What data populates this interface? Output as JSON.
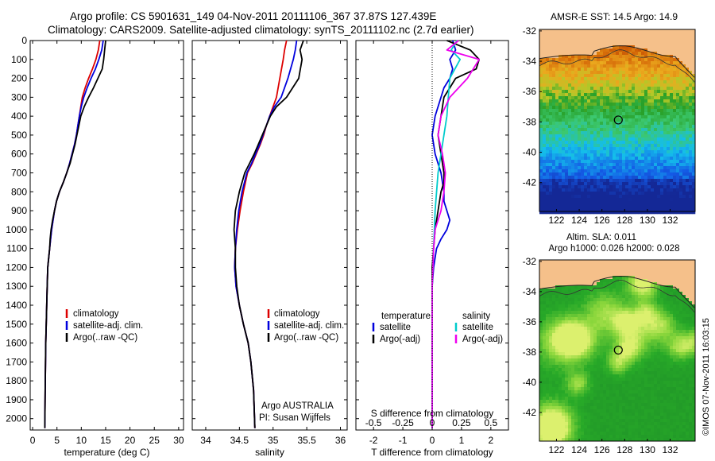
{
  "header": {
    "line1": "Argo profile: CS 5901631_149 04-Nov-2011 20111106_367 37.87S 127.439E",
    "line2": "Climatology: CARS2009. Satellite-adjusted climatology: synTS_20111102.nc (2.7d earlier)"
  },
  "footer_credit": "©IMOS 07-Nov-2011 16:03:15",
  "colors": {
    "climatology": "#dd0000",
    "satellite": "#0000dd",
    "argo": "#000000",
    "sal_satellite": "#00cccc",
    "sal_argo": "#ee00ee",
    "land": "#f5c08a"
  },
  "chart_data": [
    {
      "id": "temperature",
      "type": "line",
      "xlabel": "temperature (deg C)",
      "ylabel": "",
      "xlim": [
        -0.5,
        31
      ],
      "ylim": [
        0,
        2060
      ],
      "y_inverted": true,
      "xticks": [
        0,
        5,
        10,
        15,
        20,
        25,
        30
      ],
      "yticks": [
        0,
        100,
        200,
        300,
        400,
        500,
        600,
        700,
        800,
        900,
        1000,
        1100,
        1200,
        1300,
        1400,
        1500,
        1600,
        1700,
        1800,
        1900,
        2000
      ],
      "legend": [
        "climatology",
        "satellite-adj. clim.",
        "Argo(..raw -QC)"
      ],
      "legend_position": "lower-middle",
      "series": [
        {
          "name": "climatology",
          "color": "#dd0000",
          "x": [
            13.8,
            13.5,
            13.0,
            12.3,
            11.5,
            10.8,
            10.2,
            9.9,
            9.6,
            9.3,
            9.0,
            8.6,
            8.1,
            7.6,
            7.0,
            6.3,
            5.5,
            4.9,
            4.5,
            4.2,
            3.9,
            3.7,
            3.5,
            3.3,
            3.1,
            3.0,
            2.9,
            2.8,
            2.7,
            2.6,
            2.5
          ],
          "y": [
            0,
            50,
            100,
            150,
            200,
            250,
            300,
            350,
            400,
            450,
            500,
            550,
            600,
            650,
            700,
            750,
            800,
            850,
            900,
            950,
            1000,
            1050,
            1100,
            1150,
            1200,
            1300,
            1400,
            1500,
            1600,
            1800,
            2050
          ]
        },
        {
          "name": "satellite-adj. clim.",
          "color": "#0000dd",
          "x": [
            14.5,
            14.2,
            13.6,
            12.9,
            12.0,
            11.2,
            10.5,
            10.0,
            9.6,
            9.3,
            9.0,
            8.6,
            8.1,
            7.6,
            7.0,
            6.3,
            5.5,
            4.9,
            4.5,
            4.2,
            3.9,
            3.7,
            3.5,
            3.3,
            3.1,
            3.0,
            2.9,
            2.8,
            2.7,
            2.6,
            2.5
          ],
          "y": [
            0,
            50,
            100,
            150,
            200,
            250,
            300,
            350,
            400,
            450,
            500,
            550,
            600,
            650,
            700,
            750,
            800,
            850,
            900,
            950,
            1000,
            1050,
            1100,
            1150,
            1200,
            1300,
            1400,
            1500,
            1600,
            1800,
            2050
          ]
        },
        {
          "name": "Argo(..raw -QC)",
          "color": "#000000",
          "x": [
            15.0,
            14.8,
            14.6,
            14.3,
            13.4,
            12.5,
            11.5,
            10.6,
            9.9,
            9.5,
            9.1,
            8.7,
            8.2,
            7.7,
            7.0,
            6.3,
            5.5,
            4.9,
            4.5,
            4.1,
            3.8,
            3.6,
            3.5,
            3.3,
            3.1,
            3.0,
            2.9,
            2.8,
            2.7,
            2.6,
            2.5
          ],
          "y": [
            0,
            50,
            100,
            150,
            200,
            250,
            300,
            350,
            400,
            450,
            500,
            550,
            600,
            650,
            700,
            750,
            800,
            850,
            900,
            950,
            1000,
            1050,
            1100,
            1150,
            1200,
            1300,
            1400,
            1500,
            1600,
            1800,
            2050
          ]
        }
      ]
    },
    {
      "id": "salinity",
      "type": "line",
      "xlabel": "salinity",
      "ylabel": "",
      "xlim": [
        33.8,
        36.1
      ],
      "ylim": [
        0,
        2060
      ],
      "y_inverted": true,
      "xticks": [
        34,
        34.5,
        35,
        35.5,
        36
      ],
      "legend": [
        "climatology",
        "satellite-adj. clim.",
        "Argo(..raw -QC)"
      ],
      "legend_position": "lower-middle",
      "annotation_lines": [
        "Argo AUSTRALIA",
        "PI: Susan Wijffels"
      ],
      "series": [
        {
          "name": "climatology",
          "color": "#dd0000",
          "x": [
            35.2,
            35.17,
            35.15,
            35.1,
            35.05,
            35.0,
            34.95,
            34.9,
            34.86,
            34.81,
            34.75,
            34.69,
            34.62,
            34.56,
            34.51,
            34.47,
            34.44,
            34.43,
            34.45,
            34.5,
            34.56,
            34.63,
            34.67,
            34.71,
            34.73
          ],
          "y": [
            0,
            50,
            100,
            200,
            300,
            350,
            400,
            450,
            500,
            550,
            600,
            650,
            700,
            800,
            900,
            1000,
            1100,
            1200,
            1300,
            1400,
            1500,
            1600,
            1700,
            1850,
            2050
          ]
        },
        {
          "name": "satellite-adj. clim.",
          "color": "#0000dd",
          "x": [
            35.35,
            35.33,
            35.3,
            35.22,
            35.12,
            35.02,
            34.95,
            34.9,
            34.85,
            34.8,
            34.74,
            34.68,
            34.61,
            34.54,
            34.49,
            34.46,
            34.44,
            34.43,
            34.45,
            34.5,
            34.56,
            34.63,
            34.67,
            34.71,
            34.73
          ],
          "y": [
            0,
            50,
            100,
            200,
            300,
            350,
            400,
            450,
            500,
            550,
            600,
            650,
            700,
            800,
            900,
            1000,
            1100,
            1200,
            1300,
            1400,
            1500,
            1600,
            1700,
            1850,
            2050
          ]
        },
        {
          "name": "Argo(..raw -QC)",
          "color": "#000000",
          "x": [
            35.45,
            35.4,
            35.43,
            35.38,
            35.2,
            35.05,
            34.96,
            34.9,
            34.84,
            34.78,
            34.72,
            34.65,
            34.58,
            34.5,
            34.44,
            34.42,
            34.44,
            34.44,
            34.46,
            34.5,
            34.56,
            34.63,
            34.67,
            34.71,
            34.73
          ],
          "y": [
            0,
            50,
            100,
            200,
            300,
            350,
            400,
            450,
            500,
            550,
            600,
            650,
            700,
            800,
            900,
            1000,
            1100,
            1200,
            1300,
            1400,
            1500,
            1600,
            1700,
            1850,
            2050
          ]
        }
      ]
    },
    {
      "id": "difference",
      "type": "line",
      "xlabel": "T difference from climatology",
      "top_label": "S difference from climatology",
      "xlim": [
        -2.6,
        2.6
      ],
      "ylim": [
        0,
        2060
      ],
      "y_inverted": true,
      "xticks_T": [
        -2,
        -1,
        0,
        1,
        2
      ],
      "xticks_S": [
        "-0.5",
        "-0.25",
        "0",
        "0.25",
        "0.5"
      ],
      "legend_temperature_title": "temperature",
      "legend_salinity_title": "salinity",
      "legend": [
        "satellite",
        "Argo(-adj)",
        "satellite",
        "Argo(-adj)"
      ],
      "legend_position": "lower-middle",
      "series": [
        {
          "name": "satellite",
          "group": "temperature",
          "color": "#0000dd",
          "x": [
            0.7,
            0.8,
            0.6,
            0.7,
            0.6,
            0.4,
            0.3,
            0.1,
            0.0,
            0.1,
            0.2,
            0.3,
            0.4,
            0.4,
            0.5,
            0.6,
            0.5,
            0.3,
            0.15,
            0.05,
            0.0,
            0.0,
            0.0,
            0.0
          ],
          "y": [
            0,
            50,
            100,
            150,
            200,
            250,
            300,
            400,
            500,
            600,
            650,
            700,
            800,
            850,
            900,
            950,
            1000,
            1050,
            1100,
            1200,
            1300,
            1500,
            1800,
            2050
          ]
        },
        {
          "name": "Argo(-adj)",
          "group": "temperature",
          "color": "#000000",
          "x": [
            0.5,
            1.3,
            1.6,
            1.5,
            0.8,
            0.6,
            0.4,
            0.3,
            0.2,
            0.3,
            0.4,
            0.4,
            0.3,
            0.2,
            0.1,
            0.05,
            0.0,
            0.0,
            0.0,
            0.0
          ],
          "y": [
            0,
            50,
            100,
            150,
            200,
            250,
            300,
            400,
            500,
            600,
            700,
            750,
            800,
            900,
            1000,
            1100,
            1200,
            1400,
            1700,
            2050
          ]
        },
        {
          "name": "satellite",
          "group": "salinity",
          "color": "#00cccc",
          "x": [
            0.85,
            0.65,
            0.95,
            0.6,
            0.55,
            0.5,
            0.4,
            0.2,
            0.1,
            0.05,
            0.0,
            0.0,
            0.0
          ],
          "y": [
            0,
            50,
            100,
            200,
            300,
            400,
            500,
            700,
            900,
            1100,
            1300,
            1600,
            2050
          ]
        },
        {
          "name": "Argo(-adj)",
          "group": "salinity",
          "color": "#ee00ee",
          "x": [
            0.9,
            0.5,
            1.6,
            1.2,
            0.6,
            0.3,
            0.2,
            0.35,
            0.45,
            0.4,
            0.3,
            0.2,
            0.1,
            0.05,
            0.0,
            0.0
          ],
          "y": [
            0,
            50,
            100,
            200,
            300,
            400,
            500,
            600,
            700,
            800,
            900,
            950,
            1000,
            1100,
            1300,
            2050
          ]
        }
      ]
    },
    {
      "id": "sst_map",
      "type": "heatmap",
      "title": "AMSR-E SST: 14.5 Argo: 14.9",
      "xticks": [
        122,
        124,
        126,
        128,
        130,
        132
      ],
      "yticks": [
        -32,
        -34,
        -36,
        -38,
        -40,
        -42
      ],
      "xlim": [
        120.5,
        134.2
      ],
      "ylim": [
        -43.9,
        -31.9
      ],
      "marker": {
        "lon": 127.44,
        "lat": -37.87
      }
    },
    {
      "id": "sla_map",
      "type": "heatmap",
      "title_lines": [
        "Altim. SLA: 0.011",
        "Argo h1000: 0.026 h2000: 0.028"
      ],
      "xticks": [
        122,
        124,
        126,
        128,
        130,
        132
      ],
      "yticks": [
        -32,
        -34,
        -36,
        -38,
        -40,
        -42
      ],
      "xlim": [
        120.5,
        134.2
      ],
      "ylim": [
        -43.9,
        -31.9
      ],
      "marker": {
        "lon": 127.44,
        "lat": -37.87
      }
    }
  ]
}
